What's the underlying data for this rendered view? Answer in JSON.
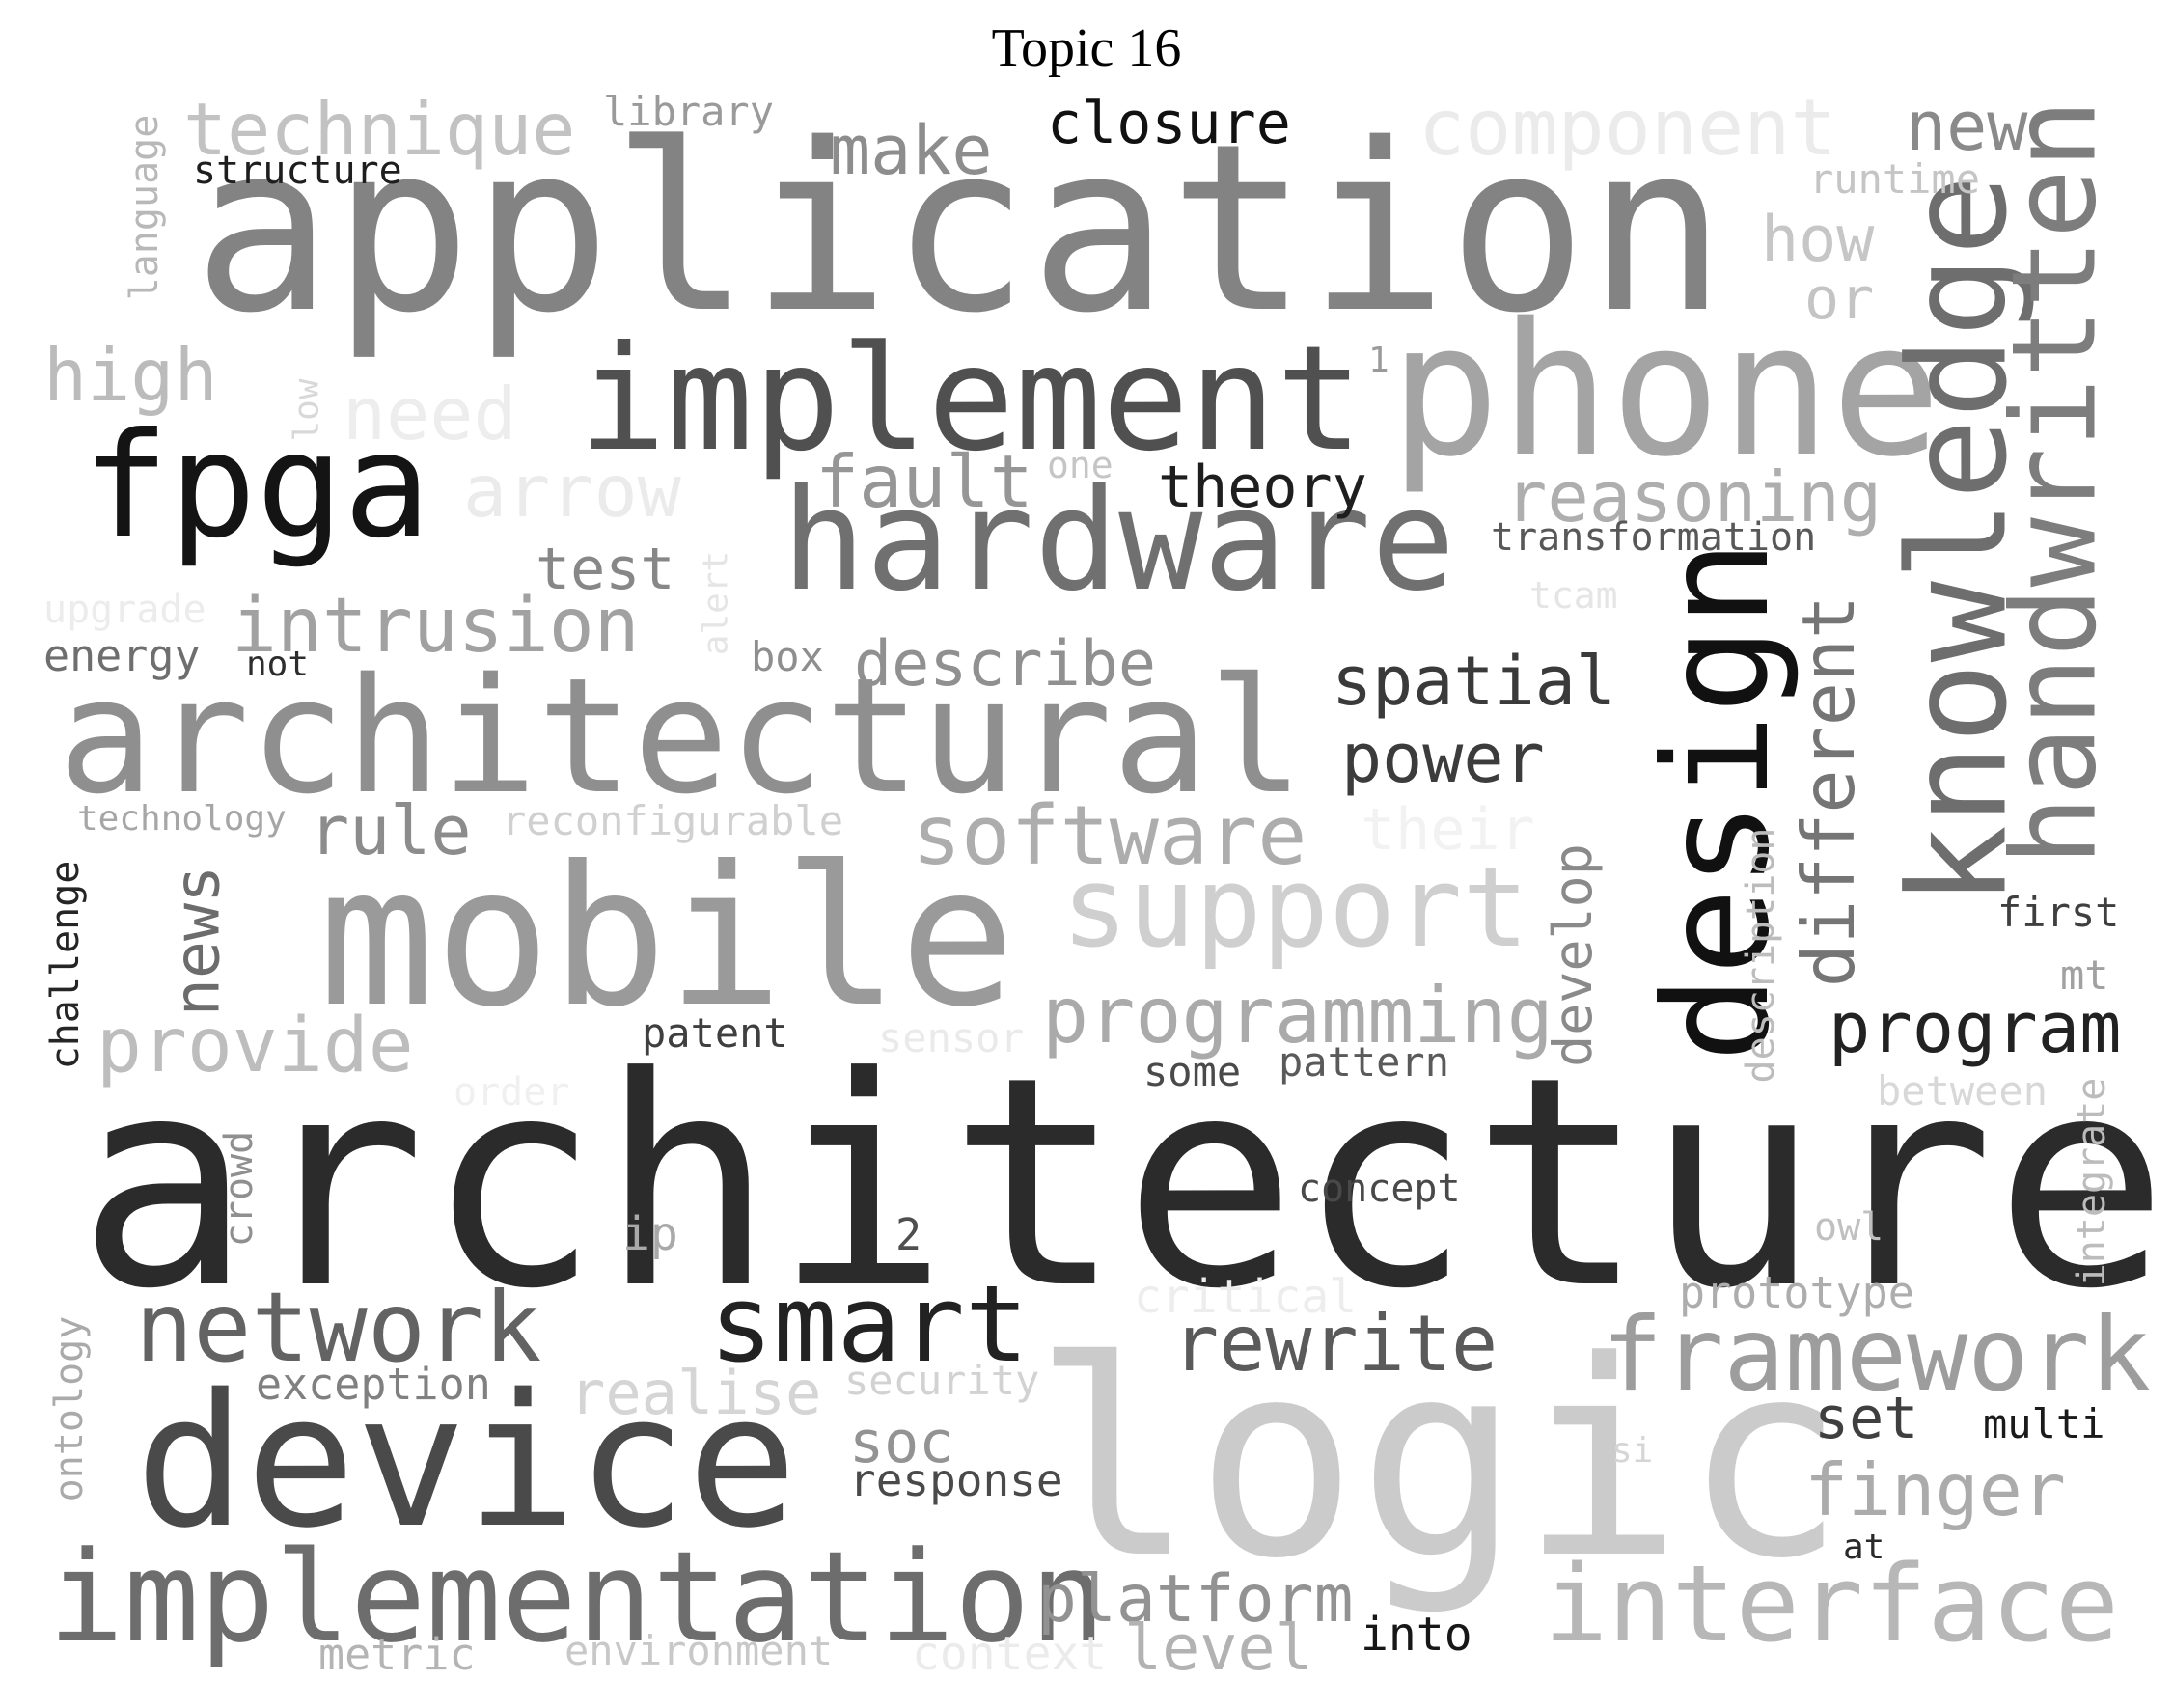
{
  "title": "Topic 16",
  "words": [
    {
      "text": "architecture",
      "weight": 1.0,
      "color": "#2b2b2b",
      "vertical": false
    },
    {
      "text": "application",
      "weight": 0.85,
      "color": "#838383",
      "vertical": false
    },
    {
      "text": "logic",
      "weight": 0.85,
      "color": "#cbcbcb",
      "vertical": false
    },
    {
      "text": "mobile",
      "weight": 0.72,
      "color": "#9a9a9a",
      "vertical": false
    },
    {
      "text": "device",
      "weight": 0.62,
      "color": "#4a4a4a",
      "vertical": false
    },
    {
      "text": "phone",
      "weight": 0.62,
      "color": "#a4a4a4",
      "vertical": false
    },
    {
      "text": "knowledge",
      "weight": 0.6,
      "color": "#6e6e6e",
      "vertical": true
    },
    {
      "text": "architectural",
      "weight": 0.55,
      "color": "#8f8f8f",
      "vertical": false
    },
    {
      "text": "implementation",
      "weight": 0.5,
      "color": "#6d6d6d",
      "vertical": false
    },
    {
      "text": "design",
      "weight": 0.5,
      "color": "#111111",
      "vertical": true
    },
    {
      "text": "implement",
      "weight": 0.48,
      "color": "#505050",
      "vertical": false
    },
    {
      "text": "hardware",
      "weight": 0.48,
      "color": "#707070",
      "vertical": false
    },
    {
      "text": "fpga",
      "weight": 0.45,
      "color": "#141414",
      "vertical": false
    },
    {
      "text": "handwritten",
      "weight": 0.42,
      "color": "#7d7d7d",
      "vertical": true
    },
    {
      "text": "interface",
      "weight": 0.38,
      "color": "#b7b7b7",
      "vertical": false
    },
    {
      "text": "support",
      "weight": 0.38,
      "color": "#cfcfcf",
      "vertical": false
    },
    {
      "text": "framework",
      "weight": 0.36,
      "color": "#9d9d9d",
      "vertical": false
    },
    {
      "text": "network",
      "weight": 0.35,
      "color": "#636363",
      "vertical": false
    },
    {
      "text": "smart",
      "weight": 0.35,
      "color": "#222222",
      "vertical": false
    },
    {
      "text": "technique",
      "weight": 0.28,
      "color": "#c2c2c2",
      "vertical": false
    },
    {
      "text": "component",
      "weight": 0.28,
      "color": "#ebebeb",
      "vertical": false
    },
    {
      "text": "programming",
      "weight": 0.28,
      "color": "#aaaaaa",
      "vertical": false
    },
    {
      "text": "software",
      "weight": 0.28,
      "color": "#adadad",
      "vertical": false
    },
    {
      "text": "reasoning",
      "weight": 0.27,
      "color": "#aeaeae",
      "vertical": false
    },
    {
      "text": "intrusion",
      "weight": 0.27,
      "color": "#a1a1a1",
      "vertical": false
    },
    {
      "text": "provide",
      "weight": 0.27,
      "color": "#bdbdbd",
      "vertical": false
    },
    {
      "text": "rewrite",
      "weight": 0.26,
      "color": "#5a5a5a",
      "vertical": false
    },
    {
      "text": "platform",
      "weight": 0.26,
      "color": "#929292",
      "vertical": false
    },
    {
      "text": "different",
      "weight": 0.26,
      "color": "#757575",
      "vertical": true
    },
    {
      "text": "spatial",
      "weight": 0.25,
      "color": "#3a3a3a",
      "vertical": false
    },
    {
      "text": "program",
      "weight": 0.25,
      "color": "#222222",
      "vertical": false
    },
    {
      "text": "make",
      "weight": 0.24,
      "color": "#8d8d8d",
      "vertical": false
    },
    {
      "text": "finger",
      "weight": 0.24,
      "color": "#ababab",
      "vertical": false
    },
    {
      "text": "fault",
      "weight": 0.24,
      "color": "#969696",
      "vertical": false
    },
    {
      "text": "arrow",
      "weight": 0.24,
      "color": "#ebebeb",
      "vertical": false
    },
    {
      "text": "need",
      "weight": 0.24,
      "color": "#ededed",
      "vertical": false
    },
    {
      "text": "new",
      "weight": 0.23,
      "color": "#8a8a8a",
      "vertical": false
    },
    {
      "text": "high",
      "weight": 0.23,
      "color": "#bbbbbb",
      "vertical": false
    },
    {
      "text": "news",
      "weight": 0.23,
      "color": "#6c6c6c",
      "vertical": true
    },
    {
      "text": "power",
      "weight": 0.22,
      "color": "#3c3c3c",
      "vertical": false
    },
    {
      "text": "describe",
      "weight": 0.22,
      "color": "#909090",
      "vertical": false
    },
    {
      "text": "rule",
      "weight": 0.22,
      "color": "#8c8c8c",
      "vertical": false
    },
    {
      "text": "how",
      "weight": 0.22,
      "color": "#c6c6c6",
      "vertical": false
    },
    {
      "text": "level",
      "weight": 0.22,
      "color": "#b2b2b2",
      "vertical": false
    },
    {
      "text": "realise",
      "weight": 0.22,
      "color": "#d5d5d5",
      "vertical": false
    },
    {
      "text": "develop",
      "weight": 0.21,
      "color": "#8a8a8a",
      "vertical": true
    },
    {
      "text": "theory",
      "weight": 0.2,
      "color": "#1e1e1e",
      "vertical": false
    },
    {
      "text": "closure",
      "weight": 0.2,
      "color": "#111111",
      "vertical": false
    },
    {
      "text": "test",
      "weight": 0.2,
      "color": "#878787",
      "vertical": false
    },
    {
      "text": "soc",
      "weight": 0.2,
      "color": "#939393",
      "vertical": false
    },
    {
      "text": "set",
      "weight": 0.2,
      "color": "#3f3f3f",
      "vertical": false
    },
    {
      "text": "or",
      "weight": 0.2,
      "color": "#c4c4c4",
      "vertical": false
    },
    {
      "text": "description",
      "weight": 0.15,
      "color": "#bcbcbc",
      "vertical": true
    },
    {
      "text": "structure",
      "weight": 0.15,
      "color": "#1e1e1e",
      "vertical": false
    },
    {
      "text": "library",
      "weight": 0.15,
      "color": "#9a9a9a",
      "vertical": false
    },
    {
      "text": "language",
      "weight": 0.15,
      "color": "#b8b8b8",
      "vertical": true
    },
    {
      "text": "runtime",
      "weight": 0.15,
      "color": "#c5c5c5",
      "vertical": false
    },
    {
      "text": "transformation",
      "weight": 0.15,
      "color": "#585858",
      "vertical": false
    },
    {
      "text": "energy",
      "weight": 0.15,
      "color": "#6e6e6e",
      "vertical": false
    },
    {
      "text": "upgrade",
      "weight": 0.15,
      "color": "#ececec",
      "vertical": false
    },
    {
      "text": "technology",
      "weight": 0.13,
      "color": "#a6a6a6",
      "vertical": false
    },
    {
      "text": "reconfigurable",
      "weight": 0.15,
      "color": "#d0d0d0",
      "vertical": false
    },
    {
      "text": "their",
      "weight": 0.2,
      "color": "#f2f2f2",
      "vertical": false
    },
    {
      "text": "challenge",
      "weight": 0.15,
      "color": "#252525",
      "vertical": true
    },
    {
      "text": "patent",
      "weight": 0.15,
      "color": "#3f3f3f",
      "vertical": false
    },
    {
      "text": "sensor",
      "weight": 0.15,
      "color": "#eaeaea",
      "vertical": false
    },
    {
      "text": "some",
      "weight": 0.15,
      "color": "#4a4a4a",
      "vertical": false
    },
    {
      "text": "pattern",
      "weight": 0.15,
      "color": "#5a5a5a",
      "vertical": false
    },
    {
      "text": "between",
      "weight": 0.15,
      "color": "#d8d8d8",
      "vertical": false
    },
    {
      "text": "order",
      "weight": 0.13,
      "color": "#f0f0f0",
      "vertical": false
    },
    {
      "text": "first",
      "weight": 0.15,
      "color": "#3f3f3f",
      "vertical": false
    },
    {
      "text": "mt",
      "weight": 0.15,
      "color": "#a1a1a1",
      "vertical": false
    },
    {
      "text": "integrate",
      "weight": 0.15,
      "color": "#bcbcbc",
      "vertical": true
    },
    {
      "text": "concept",
      "weight": 0.15,
      "color": "#494949",
      "vertical": false
    },
    {
      "text": "owl",
      "weight": 0.15,
      "color": "#c0c0c0",
      "vertical": false
    },
    {
      "text": "crowd",
      "weight": 0.15,
      "color": "#8f8f8f",
      "vertical": true
    },
    {
      "text": "ip",
      "weight": 0.15,
      "color": "#a9a9a9",
      "vertical": false
    },
    {
      "text": "2",
      "weight": 0.13,
      "color": "#4f4f4f",
      "vertical": false
    },
    {
      "text": "critical",
      "weight": 0.15,
      "color": "#ededed",
      "vertical": false
    },
    {
      "text": "prototype",
      "weight": 0.15,
      "color": "#adadad",
      "vertical": false
    },
    {
      "text": "exception",
      "weight": 0.15,
      "color": "#808080",
      "vertical": false
    },
    {
      "text": "security",
      "weight": 0.15,
      "color": "#d2d2d2",
      "vertical": false
    },
    {
      "text": "ontology",
      "weight": 0.15,
      "color": "#aaaaaa",
      "vertical": true
    },
    {
      "text": "response",
      "weight": 0.15,
      "color": "#4a4a4a",
      "vertical": false
    },
    {
      "text": "si",
      "weight": 0.12,
      "color": "#d5d5d5",
      "vertical": false
    },
    {
      "text": "multi",
      "weight": 0.15,
      "color": "#1a1a1a",
      "vertical": false
    },
    {
      "text": "at",
      "weight": 0.12,
      "color": "#2a2a2a",
      "vertical": false
    },
    {
      "text": "metric",
      "weight": 0.15,
      "color": "#b4b4b4",
      "vertical": false
    },
    {
      "text": "environment",
      "weight": 0.15,
      "color": "#c8c8c8",
      "vertical": false
    },
    {
      "text": "context",
      "weight": 0.15,
      "color": "#ebebeb",
      "vertical": false
    },
    {
      "text": "into",
      "weight": 0.15,
      "color": "#171717",
      "vertical": false
    },
    {
      "text": "low",
      "weight": 0.13,
      "color": "#d8d8d8",
      "vertical": true
    },
    {
      "text": "alert",
      "weight": 0.13,
      "color": "#e5e5e5",
      "vertical": true
    },
    {
      "text": "box",
      "weight": 0.13,
      "color": "#8e8e8e",
      "vertical": false
    },
    {
      "text": "one",
      "weight": 0.12,
      "color": "#c5c5c5",
      "vertical": false
    },
    {
      "text": "1",
      "weight": 0.1,
      "color": "#9a9a9a",
      "vertical": false
    },
    {
      "text": "tcam",
      "weight": 0.13,
      "color": "#e5e5e5",
      "vertical": false
    },
    {
      "text": "not",
      "weight": 0.12,
      "color": "#2d2d2d",
      "vertical": false
    }
  ]
}
